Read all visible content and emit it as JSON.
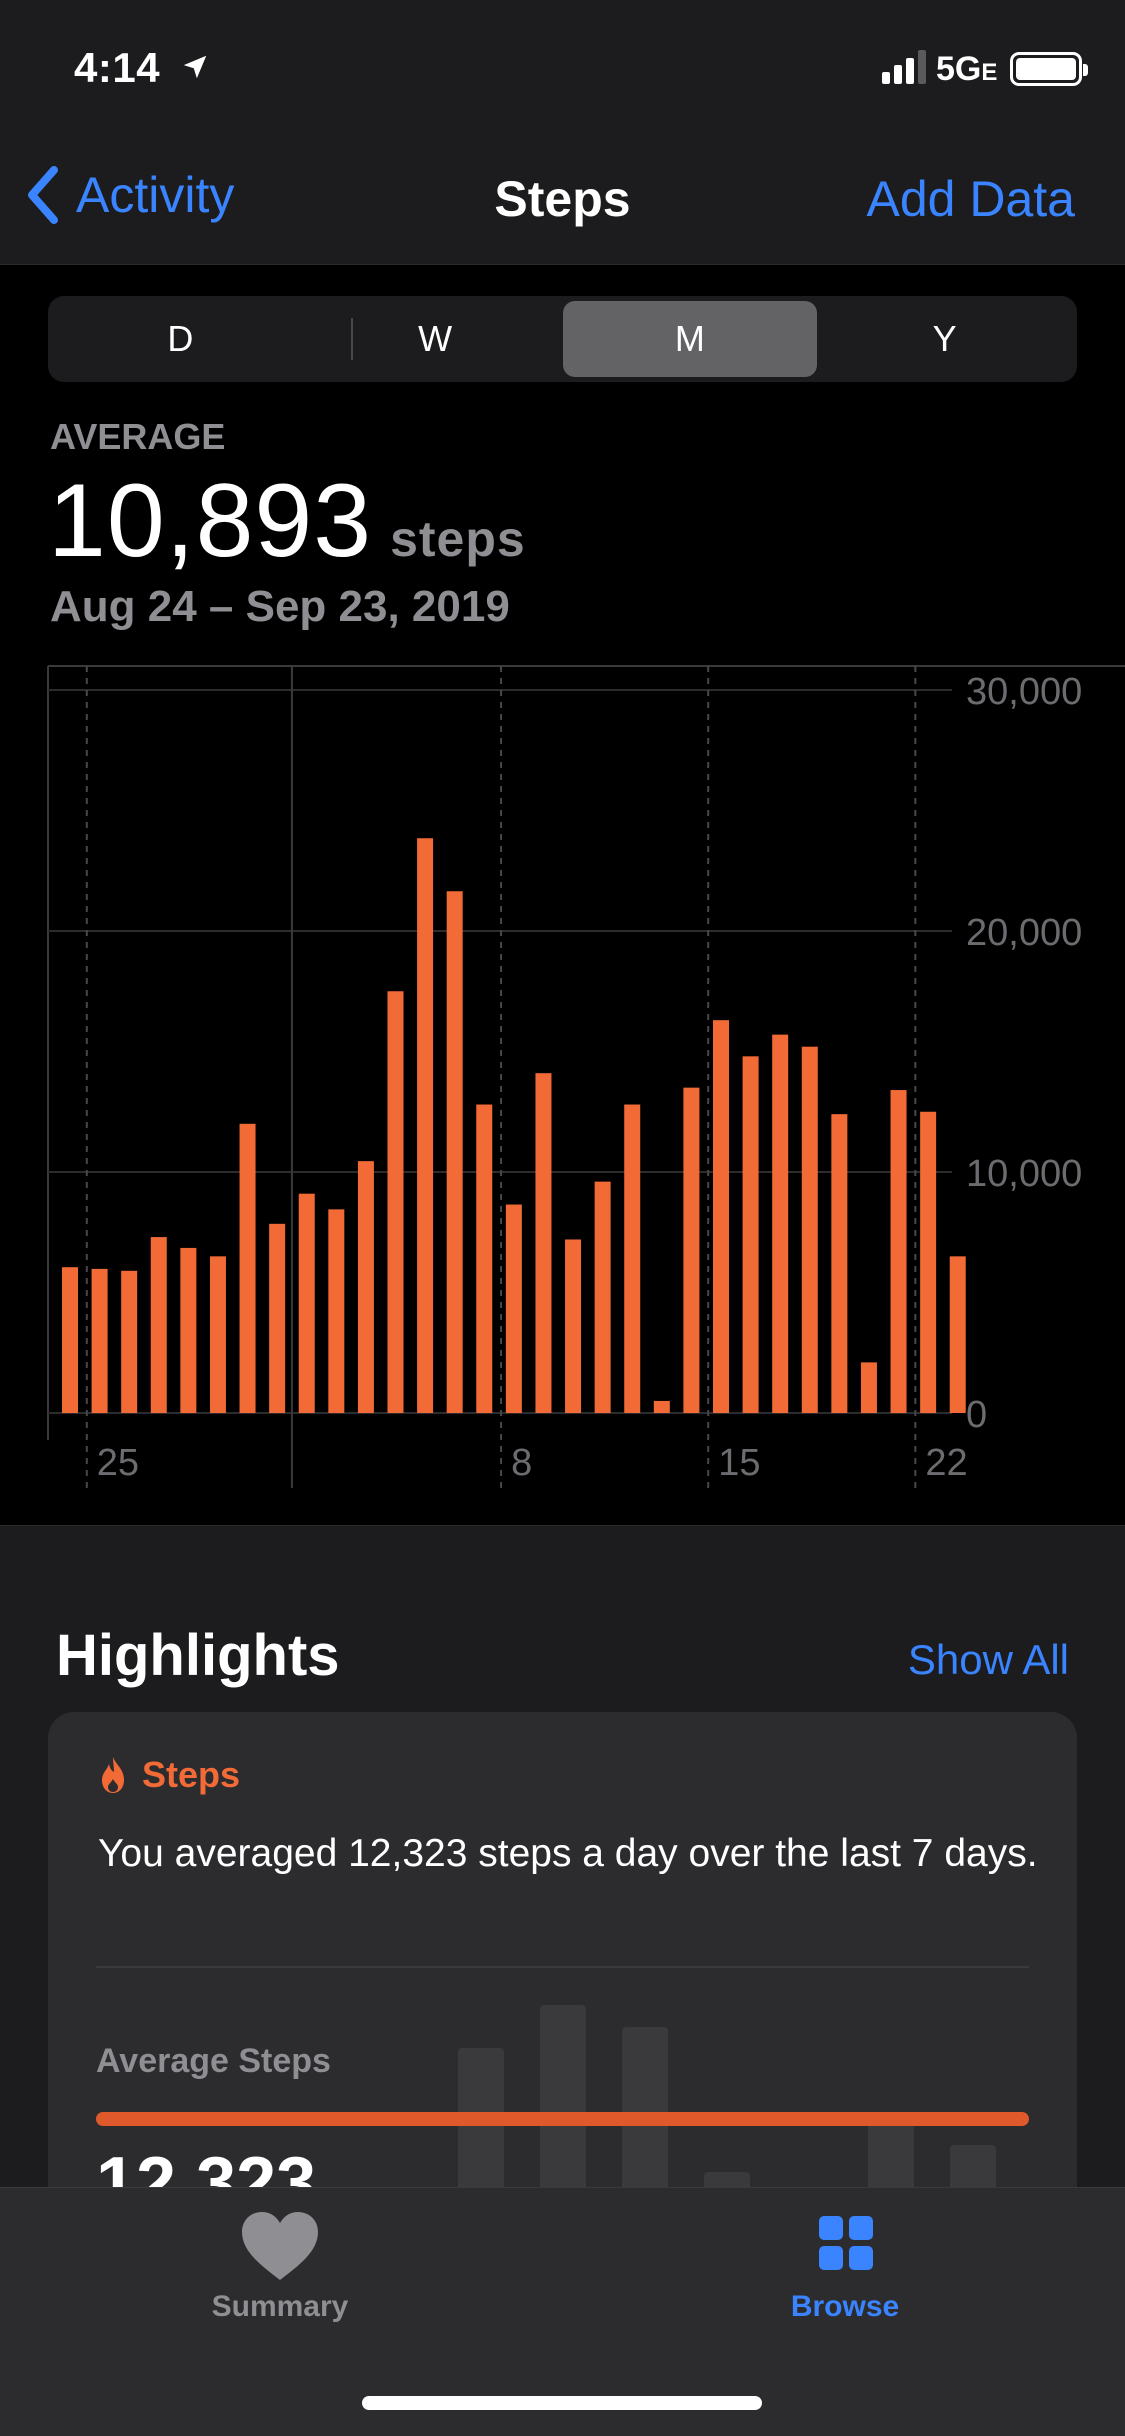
{
  "status": {
    "time": "4:14",
    "network": "5G",
    "network_suffix": "E"
  },
  "nav": {
    "back_label": "Activity",
    "title": "Steps",
    "action_label": "Add Data"
  },
  "segments": [
    {
      "label": "D",
      "active": false
    },
    {
      "label": "W",
      "active": false
    },
    {
      "label": "M",
      "active": true
    },
    {
      "label": "Y",
      "active": false
    }
  ],
  "summary": {
    "label": "AVERAGE",
    "value": "10,893",
    "unit": "steps",
    "range": "Aug 24 – Sep 23, 2019"
  },
  "chart_data": {
    "type": "bar",
    "categories": [
      "Aug 24",
      "Aug 25",
      "Aug 26",
      "Aug 27",
      "Aug 28",
      "Aug 29",
      "Aug 30",
      "Aug 31",
      "Sep 1",
      "Sep 2",
      "Sep 3",
      "Sep 4",
      "Sep 5",
      "Sep 6",
      "Sep 7",
      "Sep 8",
      "Sep 9",
      "Sep 10",
      "Sep 11",
      "Sep 12",
      "Sep 13",
      "Sep 14",
      "Sep 15",
      "Sep 16",
      "Sep 17",
      "Sep 18",
      "Sep 19",
      "Sep 20",
      "Sep 21",
      "Sep 22",
      "Sep 23"
    ],
    "values": [
      6050,
      5980,
      5900,
      7300,
      6850,
      6500,
      12000,
      7850,
      9100,
      8450,
      10450,
      17500,
      23850,
      21650,
      12800,
      8650,
      14100,
      7200,
      9600,
      12800,
      500,
      13500,
      16300,
      14800,
      15700,
      15200,
      12400,
      2100,
      13400,
      12500,
      6500
    ],
    "x_tick_labels": [
      "25",
      "8",
      "15",
      "22"
    ],
    "y_ticks": [
      "0",
      "10,000",
      "20,000",
      "30,000"
    ],
    "ylim": [
      0,
      30000
    ],
    "color": "#f26b36",
    "grid": true
  },
  "highlights": {
    "title": "Highlights",
    "show_all": "Show All",
    "card": {
      "category": "Steps",
      "text": "You averaged 12,323 steps a day over the last 7 days.",
      "avg_label": "Average Steps",
      "avg_value": "12,323",
      "mini_bar_levels": [
        0.85,
        0.99,
        0.92,
        0.45,
        0.0,
        0.62,
        0.54
      ]
    }
  },
  "tabbar": {
    "summary_label": "Summary",
    "browse_label": "Browse"
  },
  "colors": {
    "accent": "#3a84ff",
    "activity": "#f26b36"
  }
}
